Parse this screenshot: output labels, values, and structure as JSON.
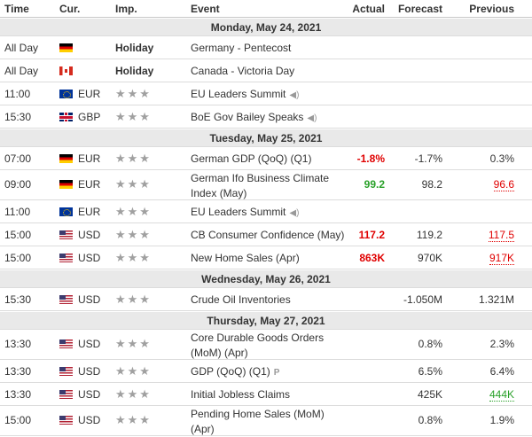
{
  "header": {
    "time": "Time",
    "cur": "Cur.",
    "imp": "Imp.",
    "event": "Event",
    "actual": "Actual",
    "forecast": "Forecast",
    "previous": "Previous"
  },
  "colors": {
    "negative": "#e00000",
    "positive": "#2aa12a",
    "day_bg": "#e9e9e9"
  },
  "days": [
    {
      "label": "Monday, May 24, 2021",
      "events": [
        {
          "time": "All Day",
          "flag": "de",
          "cur": "",
          "imp_text": "Holiday",
          "event": "Germany - Pentecost"
        },
        {
          "time": "All Day",
          "flag": "ca",
          "cur": "",
          "imp_text": "Holiday",
          "event": "Canada - Victoria Day"
        },
        {
          "time": "11:00",
          "flag": "eu",
          "cur": "EUR",
          "stars": 3,
          "event": "EU Leaders Summit",
          "speaker": true
        },
        {
          "time": "15:30",
          "flag": "gb",
          "cur": "GBP",
          "stars": 3,
          "event": "BoE Gov Bailey Speaks",
          "speaker": true
        }
      ]
    },
    {
      "label": "Tuesday, May 25, 2021",
      "events": [
        {
          "time": "07:00",
          "flag": "de",
          "cur": "EUR",
          "stars": 3,
          "event": "German GDP (QoQ) (Q1)",
          "actual": "-1.8%",
          "actual_color": "red",
          "forecast": "-1.7%",
          "previous": "0.3%"
        },
        {
          "time": "09:00",
          "flag": "de",
          "cur": "EUR",
          "stars": 3,
          "event": "German Ifo Business Climate Index (May)",
          "actual": "99.2",
          "actual_color": "green",
          "forecast": "98.2",
          "previous": "96.6",
          "previous_color": "red"
        },
        {
          "time": "11:00",
          "flag": "eu",
          "cur": "EUR",
          "stars": 3,
          "event": "EU Leaders Summit",
          "speaker": true
        },
        {
          "time": "15:00",
          "flag": "us",
          "cur": "USD",
          "stars": 3,
          "event": "CB Consumer Confidence (May)",
          "actual": "117.2",
          "actual_color": "red",
          "forecast": "119.2",
          "previous": "117.5",
          "previous_color": "red"
        },
        {
          "time": "15:00",
          "flag": "us",
          "cur": "USD",
          "stars": 3,
          "event": "New Home Sales (Apr)",
          "actual": "863K",
          "actual_color": "red",
          "forecast": "970K",
          "previous": "917K",
          "previous_color": "red"
        }
      ]
    },
    {
      "label": "Wednesday, May 26, 2021",
      "events": [
        {
          "time": "15:30",
          "flag": "us",
          "cur": "USD",
          "stars": 3,
          "event": "Crude Oil Inventories",
          "forecast": "-1.050M",
          "previous": "1.321M"
        }
      ]
    },
    {
      "label": "Thursday, May 27, 2021",
      "events": [
        {
          "time": "13:30",
          "flag": "us",
          "cur": "USD",
          "stars": 3,
          "event": "Core Durable Goods Orders (MoM) (Apr)",
          "forecast": "0.8%",
          "previous": "2.3%"
        },
        {
          "time": "13:30",
          "flag": "us",
          "cur": "USD",
          "stars": 3,
          "event": "GDP (QoQ) (Q1)",
          "preliminary": "P",
          "forecast": "6.5%",
          "previous": "6.4%"
        },
        {
          "time": "13:30",
          "flag": "us",
          "cur": "USD",
          "stars": 3,
          "event": "Initial Jobless Claims",
          "forecast": "425K",
          "previous": "444K",
          "previous_color": "green"
        },
        {
          "time": "15:00",
          "flag": "us",
          "cur": "USD",
          "stars": 3,
          "event": "Pending Home Sales (MoM) (Apr)",
          "forecast": "0.8%",
          "previous": "1.9%"
        }
      ]
    }
  ]
}
